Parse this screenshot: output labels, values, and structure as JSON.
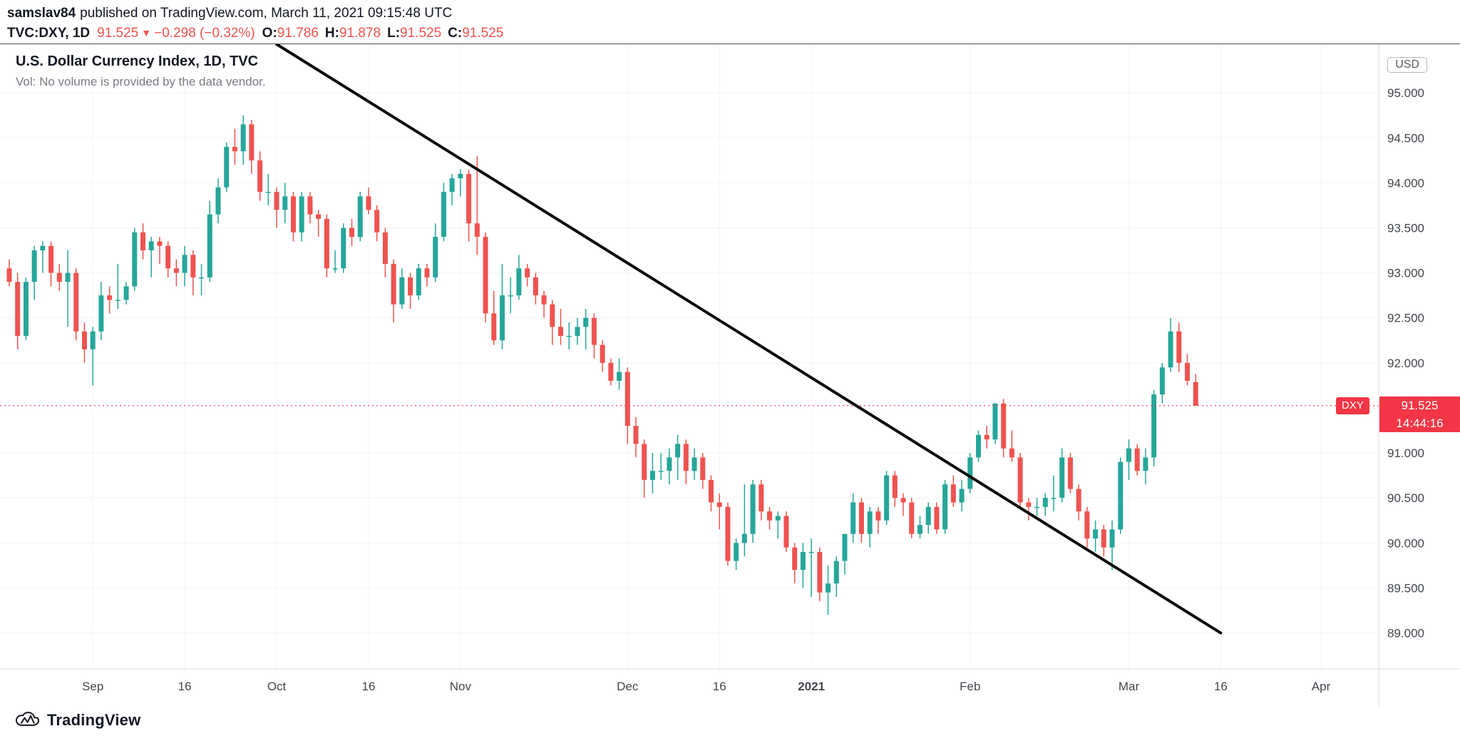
{
  "header": {
    "author": "samslav84",
    "published": "published on TradingView.com, March 11, 2021 09:15:48 UTC",
    "symbol": "TVC:DXY, 1D",
    "last_price": "91.525",
    "direction_icon": "▼",
    "change": "−0.298 (−0.32%)",
    "ohlc": {
      "o_label": "O:",
      "o": "91.786",
      "h_label": "H:",
      "h": "91.878",
      "l_label": "L:",
      "l": "91.525",
      "c_label": "C:",
      "c": "91.525"
    }
  },
  "legend": {
    "title": "U.S. Dollar Currency Index, 1D, TVC",
    "volume_note": "Vol: No volume is provided by the data vendor."
  },
  "axis": {
    "currency_badge": "USD"
  },
  "price_line": {
    "symbol_badge": "DXY",
    "price": "91.525",
    "countdown": "14:44:16",
    "value": 91.525
  },
  "footer": {
    "brand": "TradingView"
  },
  "colors": {
    "up": "#26a69a",
    "down": "#ef5350",
    "accent_red": "#f23645",
    "trendline": "#0b0b0b",
    "axis_text": "#42464e",
    "grid": "rgba(42,46,57,0.05)",
    "separator": "#d6d8de"
  },
  "chart_data": {
    "type": "candlestick",
    "title": "U.S. Dollar Currency Index, 1D, TVC",
    "symbol": "TVC:DXY",
    "interval": "1D",
    "ylim": [
      88.6,
      95.54
    ],
    "legend_position": "top-left",
    "grid": "faint",
    "price_axis_ticks": [
      {
        "label": "95.000",
        "value": 95.0
      },
      {
        "label": "94.500",
        "value": 94.5
      },
      {
        "label": "94.000",
        "value": 94.0
      },
      {
        "label": "93.500",
        "value": 93.5
      },
      {
        "label": "93.000",
        "value": 93.0
      },
      {
        "label": "92.500",
        "value": 92.5
      },
      {
        "label": "92.000",
        "value": 92.0
      },
      {
        "label": "91.000",
        "value": 91.0
      },
      {
        "label": "90.500",
        "value": 90.5
      },
      {
        "label": "90.000",
        "value": 90.0
      },
      {
        "label": "89.500",
        "value": 89.5
      },
      {
        "label": "89.000",
        "value": 89.0
      }
    ],
    "time_axis_labels": [
      {
        "label": "Sep",
        "index": 10
      },
      {
        "label": "16",
        "index": 21
      },
      {
        "label": "Oct",
        "index": 32
      },
      {
        "label": "16",
        "index": 43
      },
      {
        "label": "Nov",
        "index": 54
      },
      {
        "label": "Dec",
        "index": 74
      },
      {
        "label": "16",
        "index": 85
      },
      {
        "label": "2021",
        "index": 96,
        "bold": true
      },
      {
        "label": "Feb",
        "index": 115
      },
      {
        "label": "Mar",
        "index": 134
      },
      {
        "label": "16",
        "index": 145
      },
      {
        "label": "Apr",
        "index": 157
      }
    ],
    "trendline": {
      "type": "descending-trendline",
      "start": {
        "index": 32,
        "price": 95.54
      },
      "end": {
        "index": 145,
        "price": 89.0
      }
    },
    "last_price_line": 91.525,
    "candles_format": [
      "date",
      "open",
      "high",
      "low",
      "close"
    ],
    "candles": [
      [
        "2020-08-18",
        93.05,
        93.15,
        92.85,
        92.9
      ],
      [
        "2020-08-19",
        92.9,
        93.0,
        92.15,
        92.3
      ],
      [
        "2020-08-20",
        92.3,
        92.95,
        92.25,
        92.9
      ],
      [
        "2020-08-21",
        92.9,
        93.3,
        92.7,
        93.25
      ],
      [
        "2020-08-24",
        93.25,
        93.35,
        93.0,
        93.3
      ],
      [
        "2020-08-25",
        93.3,
        93.35,
        92.85,
        93.0
      ],
      [
        "2020-08-26",
        93.0,
        93.1,
        92.8,
        92.9
      ],
      [
        "2020-08-27",
        92.9,
        93.25,
        92.4,
        93.0
      ],
      [
        "2020-08-28",
        93.0,
        93.05,
        92.25,
        92.35
      ],
      [
        "2020-08-31",
        92.35,
        92.45,
        92.0,
        92.15
      ],
      [
        "2020-09-01",
        92.15,
        92.4,
        91.75,
        92.35
      ],
      [
        "2020-09-02",
        92.35,
        92.9,
        92.25,
        92.75
      ],
      [
        "2020-09-03",
        92.75,
        92.85,
        92.55,
        92.7
      ],
      [
        "2020-09-04",
        92.7,
        93.1,
        92.6,
        92.7
      ],
      [
        "2020-09-07",
        92.7,
        92.9,
        92.65,
        92.85
      ],
      [
        "2020-09-08",
        92.85,
        93.5,
        92.8,
        93.45
      ],
      [
        "2020-09-09",
        93.45,
        93.55,
        93.15,
        93.25
      ],
      [
        "2020-09-10",
        93.25,
        93.4,
        92.95,
        93.35
      ],
      [
        "2020-09-11",
        93.35,
        93.4,
        93.1,
        93.3
      ],
      [
        "2020-09-14",
        93.3,
        93.35,
        92.95,
        93.05
      ],
      [
        "2020-09-15",
        93.05,
        93.15,
        92.85,
        93.0
      ],
      [
        "2020-09-16",
        93.0,
        93.3,
        92.85,
        93.2
      ],
      [
        "2020-09-17",
        93.2,
        93.25,
        92.75,
        92.95
      ],
      [
        "2020-09-18",
        92.95,
        93.1,
        92.75,
        92.95
      ],
      [
        "2020-09-21",
        92.95,
        93.8,
        92.9,
        93.65
      ],
      [
        "2020-09-22",
        93.65,
        94.05,
        93.55,
        93.95
      ],
      [
        "2020-09-23",
        93.95,
        94.45,
        93.9,
        94.4
      ],
      [
        "2020-09-24",
        94.4,
        94.6,
        94.2,
        94.35
      ],
      [
        "2020-09-25",
        94.35,
        94.75,
        94.2,
        94.65
      ],
      [
        "2020-09-28",
        94.65,
        94.7,
        94.1,
        94.25
      ],
      [
        "2020-09-29",
        94.25,
        94.35,
        93.8,
        93.9
      ],
      [
        "2020-09-30",
        93.9,
        94.1,
        93.75,
        93.9
      ],
      [
        "2020-10-01",
        93.9,
        93.95,
        93.5,
        93.7
      ],
      [
        "2020-10-02",
        93.7,
        94.0,
        93.55,
        93.85
      ],
      [
        "2020-10-05",
        93.85,
        93.9,
        93.35,
        93.45
      ],
      [
        "2020-10-06",
        93.45,
        93.9,
        93.35,
        93.85
      ],
      [
        "2020-10-07",
        93.85,
        93.9,
        93.55,
        93.65
      ],
      [
        "2020-10-08",
        93.65,
        93.7,
        93.4,
        93.6
      ],
      [
        "2020-10-09",
        93.6,
        93.65,
        92.95,
        93.05
      ],
      [
        "2020-10-12",
        93.05,
        93.25,
        93.0,
        93.05
      ],
      [
        "2020-10-13",
        93.05,
        93.55,
        93.0,
        93.5
      ],
      [
        "2020-10-14",
        93.5,
        93.6,
        93.3,
        93.4
      ],
      [
        "2020-10-15",
        93.4,
        93.9,
        93.35,
        93.85
      ],
      [
        "2020-10-16",
        93.85,
        93.95,
        93.65,
        93.7
      ],
      [
        "2020-10-19",
        93.7,
        93.75,
        93.35,
        93.45
      ],
      [
        "2020-10-20",
        93.45,
        93.5,
        92.95,
        93.1
      ],
      [
        "2020-10-21",
        93.1,
        93.15,
        92.45,
        92.65
      ],
      [
        "2020-10-22",
        92.65,
        93.05,
        92.6,
        92.95
      ],
      [
        "2020-10-23",
        92.95,
        93.0,
        92.6,
        92.75
      ],
      [
        "2020-10-26",
        92.75,
        93.1,
        92.7,
        93.05
      ],
      [
        "2020-10-27",
        93.05,
        93.1,
        92.85,
        92.95
      ],
      [
        "2020-10-28",
        92.95,
        93.55,
        92.9,
        93.4
      ],
      [
        "2020-10-29",
        93.4,
        94.0,
        93.35,
        93.9
      ],
      [
        "2020-10-30",
        93.9,
        94.1,
        93.75,
        94.05
      ],
      [
        "2020-11-02",
        94.05,
        94.15,
        93.85,
        94.1
      ],
      [
        "2020-11-03",
        94.1,
        94.15,
        93.35,
        93.55
      ],
      [
        "2020-11-04",
        93.55,
        94.3,
        93.2,
        93.4
      ],
      [
        "2020-11-05",
        93.4,
        93.45,
        92.45,
        92.55
      ],
      [
        "2020-11-06",
        92.55,
        92.8,
        92.2,
        92.25
      ],
      [
        "2020-11-09",
        92.25,
        93.1,
        92.15,
        92.75
      ],
      [
        "2020-11-10",
        92.75,
        92.95,
        92.55,
        92.75
      ],
      [
        "2020-11-11",
        92.75,
        93.2,
        92.7,
        93.05
      ],
      [
        "2020-11-12",
        93.05,
        93.1,
        92.85,
        92.95
      ],
      [
        "2020-11-13",
        92.95,
        93.0,
        92.65,
        92.75
      ],
      [
        "2020-11-16",
        92.75,
        92.8,
        92.5,
        92.65
      ],
      [
        "2020-11-17",
        92.65,
        92.7,
        92.2,
        92.4
      ],
      [
        "2020-11-18",
        92.4,
        92.6,
        92.2,
        92.3
      ],
      [
        "2020-11-19",
        92.3,
        92.45,
        92.15,
        92.3
      ],
      [
        "2020-11-20",
        92.3,
        92.5,
        92.2,
        92.4
      ],
      [
        "2020-11-23",
        92.4,
        92.6,
        92.15,
        92.5
      ],
      [
        "2020-11-24",
        92.5,
        92.55,
        92.05,
        92.2
      ],
      [
        "2020-11-25",
        92.2,
        92.25,
        91.9,
        92.0
      ],
      [
        "2020-11-27",
        92.0,
        92.05,
        91.75,
        91.8
      ],
      [
        "2020-11-30",
        91.8,
        92.05,
        91.7,
        91.9
      ],
      [
        "2020-12-01",
        91.9,
        91.95,
        91.1,
        91.3
      ],
      [
        "2020-12-02",
        91.3,
        91.4,
        90.95,
        91.1
      ],
      [
        "2020-12-03",
        91.1,
        91.15,
        90.5,
        90.7
      ],
      [
        "2020-12-04",
        90.7,
        91.0,
        90.55,
        90.8
      ],
      [
        "2020-12-07",
        90.8,
        91.0,
        90.7,
        90.8
      ],
      [
        "2020-12-08",
        90.8,
        91.05,
        90.65,
        90.95
      ],
      [
        "2020-12-09",
        90.95,
        91.2,
        90.7,
        91.1
      ],
      [
        "2020-12-10",
        91.1,
        91.15,
        90.65,
        90.8
      ],
      [
        "2020-12-11",
        90.8,
        91.05,
        90.7,
        90.95
      ],
      [
        "2020-12-14",
        90.95,
        91.0,
        90.6,
        90.7
      ],
      [
        "2020-12-15",
        90.7,
        90.75,
        90.35,
        90.45
      ],
      [
        "2020-12-16",
        90.45,
        90.55,
        90.15,
        90.4
      ],
      [
        "2020-12-17",
        90.4,
        90.45,
        89.75,
        89.8
      ],
      [
        "2020-12-18",
        89.8,
        90.05,
        89.7,
        90.0
      ],
      [
        "2020-12-21",
        90.0,
        90.65,
        89.85,
        90.1
      ],
      [
        "2020-12-22",
        90.1,
        90.7,
        90.0,
        90.65
      ],
      [
        "2020-12-23",
        90.65,
        90.7,
        90.25,
        90.35
      ],
      [
        "2020-12-24",
        90.35,
        90.4,
        90.15,
        90.25
      ],
      [
        "2020-12-28",
        90.25,
        90.35,
        90.05,
        90.3
      ],
      [
        "2020-12-29",
        90.3,
        90.35,
        89.9,
        89.95
      ],
      [
        "2020-12-30",
        89.95,
        90.0,
        89.55,
        89.7
      ],
      [
        "2020-12-31",
        89.7,
        90.0,
        89.5,
        89.9
      ],
      [
        "2021-01-04",
        89.9,
        90.05,
        89.4,
        89.9
      ],
      [
        "2021-01-05",
        89.9,
        89.95,
        89.35,
        89.45
      ],
      [
        "2021-01-06",
        89.45,
        89.75,
        89.2,
        89.55
      ],
      [
        "2021-01-07",
        89.55,
        89.85,
        89.4,
        89.8
      ],
      [
        "2021-01-08",
        89.8,
        90.1,
        89.65,
        90.1
      ],
      [
        "2021-01-11",
        90.1,
        90.55,
        90.0,
        90.45
      ],
      [
        "2021-01-12",
        90.45,
        90.5,
        90.0,
        90.1
      ],
      [
        "2021-01-13",
        90.1,
        90.4,
        89.95,
        90.35
      ],
      [
        "2021-01-14",
        90.35,
        90.4,
        90.1,
        90.25
      ],
      [
        "2021-01-15",
        90.25,
        90.8,
        90.2,
        90.75
      ],
      [
        "2021-01-19",
        90.75,
        90.8,
        90.4,
        90.5
      ],
      [
        "2021-01-20",
        90.5,
        90.55,
        90.3,
        90.45
      ],
      [
        "2021-01-21",
        90.45,
        90.5,
        90.05,
        90.1
      ],
      [
        "2021-01-22",
        90.1,
        90.3,
        90.05,
        90.2
      ],
      [
        "2021-01-25",
        90.2,
        90.45,
        90.1,
        90.4
      ],
      [
        "2021-01-26",
        90.4,
        90.45,
        90.1,
        90.15
      ],
      [
        "2021-01-27",
        90.15,
        90.7,
        90.1,
        90.65
      ],
      [
        "2021-01-28",
        90.65,
        90.75,
        90.4,
        90.45
      ],
      [
        "2021-01-29",
        90.45,
        90.7,
        90.35,
        90.6
      ],
      [
        "2021-02-01",
        90.6,
        91.0,
        90.55,
        90.95
      ],
      [
        "2021-02-02",
        90.95,
        91.25,
        90.9,
        91.2
      ],
      [
        "2021-02-03",
        91.2,
        91.3,
        91.05,
        91.15
      ],
      [
        "2021-02-04",
        91.15,
        91.55,
        91.1,
        91.55
      ],
      [
        "2021-02-05",
        91.55,
        91.6,
        90.95,
        91.05
      ],
      [
        "2021-02-08",
        91.05,
        91.25,
        90.9,
        90.95
      ],
      [
        "2021-02-09",
        90.95,
        91.0,
        90.4,
        90.45
      ],
      [
        "2021-02-10",
        90.45,
        90.5,
        90.25,
        90.4
      ],
      [
        "2021-02-11",
        90.4,
        90.5,
        90.3,
        90.4
      ],
      [
        "2021-02-12",
        90.4,
        90.55,
        90.3,
        90.5
      ],
      [
        "2021-02-16",
        90.5,
        90.75,
        90.35,
        90.5
      ],
      [
        "2021-02-17",
        90.5,
        91.05,
        90.45,
        90.95
      ],
      [
        "2021-02-18",
        90.95,
        91.0,
        90.55,
        90.6
      ],
      [
        "2021-02-19",
        90.6,
        90.65,
        90.25,
        90.35
      ],
      [
        "2021-02-22",
        90.35,
        90.4,
        89.95,
        90.05
      ],
      [
        "2021-02-23",
        90.05,
        90.25,
        89.9,
        90.15
      ],
      [
        "2021-02-24",
        90.15,
        90.2,
        89.85,
        89.95
      ],
      [
        "2021-02-25",
        89.95,
        90.25,
        89.7,
        90.15
      ],
      [
        "2021-02-26",
        90.15,
        90.95,
        90.1,
        90.9
      ],
      [
        "2021-03-01",
        90.9,
        91.15,
        90.7,
        91.05
      ],
      [
        "2021-03-02",
        91.05,
        91.1,
        90.75,
        90.8
      ],
      [
        "2021-03-03",
        90.8,
        91.05,
        90.65,
        90.95
      ],
      [
        "2021-03-04",
        90.95,
        91.7,
        90.85,
        91.65
      ],
      [
        "2021-03-05",
        91.65,
        92.0,
        91.55,
        91.95
      ],
      [
        "2021-03-08",
        91.95,
        92.5,
        91.9,
        92.35
      ],
      [
        "2021-03-09",
        92.35,
        92.45,
        91.9,
        92.0
      ],
      [
        "2021-03-10",
        92.0,
        92.1,
        91.75,
        91.8
      ],
      [
        "2021-03-11",
        91.786,
        91.878,
        91.525,
        91.525
      ]
    ]
  }
}
